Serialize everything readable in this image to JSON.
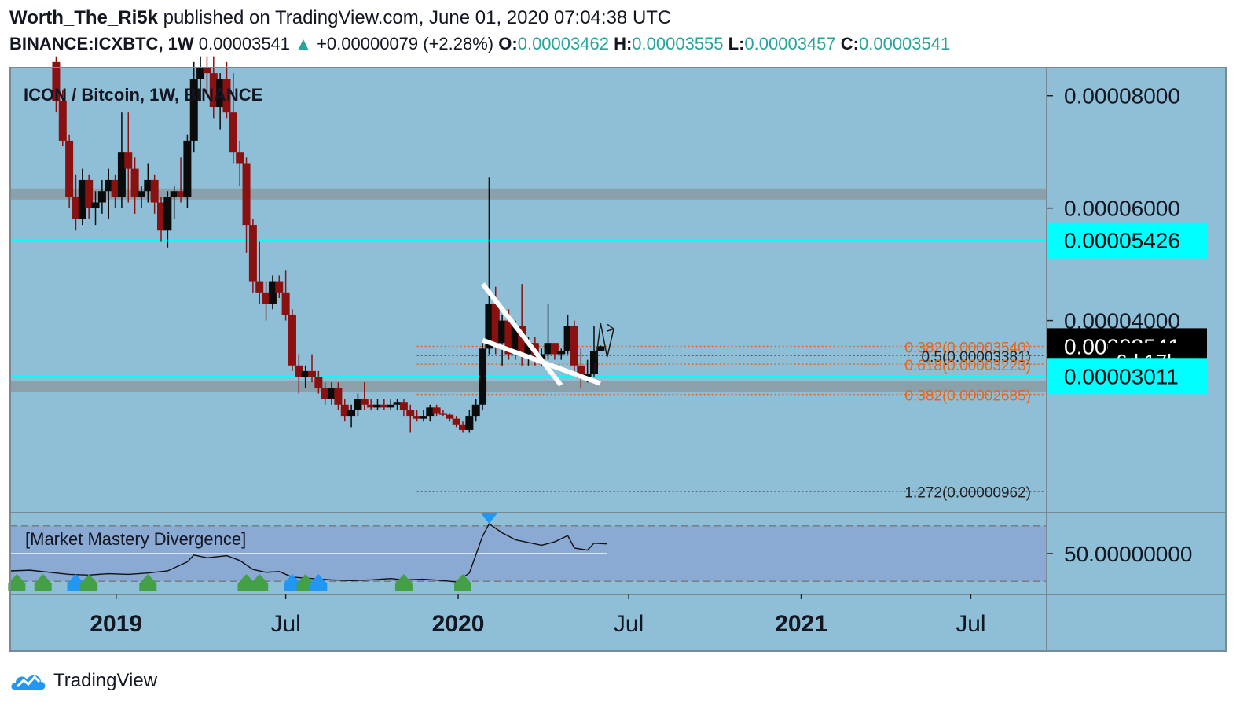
{
  "header": {
    "author": "Worth_The_Ri5k",
    "published_text": "published on TradingView.com, June 01, 2020 07:04:38 UTC",
    "symbol": "BINANCE:ICXBTC, 1W",
    "last_price": "0.00003541",
    "arrow": "▲",
    "change": "+0.00000079 (+2.28%)",
    "o_label": "O:",
    "o_value": "0.00003462",
    "h_label": "H:",
    "h_value": "0.00003555",
    "l_label": "L:",
    "l_value": "0.00003457",
    "c_label": "C:",
    "c_value": "0.00003541"
  },
  "chart_data": {
    "type": "candlestick",
    "title": "ICON / Bitcoin, 1W, BINANCE",
    "x_axis_labels": [
      {
        "label": "2019",
        "date": "2019-01-01",
        "bold": true
      },
      {
        "label": "Jul",
        "date": "2019-07-01",
        "bold": false
      },
      {
        "label": "2020",
        "date": "2020-01-01",
        "bold": true
      },
      {
        "label": "Jul",
        "date": "2020-07-01",
        "bold": false
      },
      {
        "label": "2021",
        "date": "2021-01-01",
        "bold": true
      },
      {
        "label": "Jul",
        "date": "2021-07-01",
        "bold": false
      }
    ],
    "y_axis_labels": [
      "0.00008000",
      "0.00006000",
      "0.00004000"
    ],
    "ylim": [
      5.8e-06,
      8.5e-05
    ],
    "xlim": [
      "2018-09-10",
      "2021-09-20"
    ],
    "price_labels": [
      {
        "text": "0.00005426",
        "value": 5.426e-05,
        "style": "cyan"
      },
      {
        "text": "0.00003541",
        "value": 3.541e-05,
        "style": "current"
      },
      {
        "text": "6d 17h",
        "value": 3.28e-05,
        "style": "countdown"
      },
      {
        "text": "0.00003011",
        "value": 3.011e-05,
        "style": "cyan"
      }
    ],
    "horizontal_lines": [
      {
        "value": 5.426e-05,
        "color": "#00ffff"
      },
      {
        "value": 3.011e-05,
        "color": "#00ffff"
      }
    ],
    "zones": [
      {
        "value": 6.25e-05,
        "color": "#8a9aa3"
      },
      {
        "value": 2.83e-05,
        "color": "#8a9aa3"
      }
    ],
    "fib_levels": [
      {
        "label": "0.382(0.00003540)",
        "value": 3.54e-05,
        "color": "#e8641a",
        "start": "2019-11-18"
      },
      {
        "label": "0.5(0.00003381)",
        "value": 3.381e-05,
        "color": "#222222",
        "start": "2019-11-18"
      },
      {
        "label": "0.618(0.00003223)",
        "value": 3.223e-05,
        "color": "#e8641a",
        "start": "2019-11-18"
      },
      {
        "label": "0.382(0.00002685)",
        "value": 2.685e-05,
        "color": "#e8641a",
        "start": "2019-11-18"
      },
      {
        "label": "1.272(0.00000962)",
        "value": 9.62e-06,
        "color": "#222222",
        "start": "2019-11-18"
      }
    ],
    "candles": [
      {
        "date": "2018-10-29",
        "o": 8.6e-05,
        "h": 8.7e-05,
        "l": 7.7e-05,
        "c": 7.9e-05
      },
      {
        "date": "2018-11-05",
        "o": 7.9e-05,
        "h": 8.1e-05,
        "l": 7.1e-05,
        "c": 7.2e-05
      },
      {
        "date": "2018-11-12",
        "o": 7.2e-05,
        "h": 7.3e-05,
        "l": 6e-05,
        "c": 6.2e-05
      },
      {
        "date": "2018-11-19",
        "o": 6.2e-05,
        "h": 6.6e-05,
        "l": 5.6e-05,
        "c": 5.8e-05
      },
      {
        "date": "2018-11-26",
        "o": 5.8e-05,
        "h": 6.7e-05,
        "l": 5.7e-05,
        "c": 6.5e-05
      },
      {
        "date": "2018-12-03",
        "o": 6.5e-05,
        "h": 6.6e-05,
        "l": 5.8e-05,
        "c": 6e-05
      },
      {
        "date": "2018-12-10",
        "o": 6e-05,
        "h": 6.3e-05,
        "l": 5.7e-05,
        "c": 6.1e-05
      },
      {
        "date": "2018-12-17",
        "o": 6.1e-05,
        "h": 6.5e-05,
        "l": 5.9e-05,
        "c": 6.3e-05
      },
      {
        "date": "2018-12-24",
        "o": 6.3e-05,
        "h": 6.7e-05,
        "l": 5.8e-05,
        "c": 6.5e-05
      },
      {
        "date": "2018-12-31",
        "o": 6.5e-05,
        "h": 6.6e-05,
        "l": 6e-05,
        "c": 6.2e-05
      },
      {
        "date": "2019-01-07",
        "o": 6.2e-05,
        "h": 7.7e-05,
        "l": 6e-05,
        "c": 7e-05
      },
      {
        "date": "2019-01-14",
        "o": 7e-05,
        "h": 7.7e-05,
        "l": 6.1e-05,
        "c": 6.7e-05
      },
      {
        "date": "2019-01-21",
        "o": 6.7e-05,
        "h": 6.9e-05,
        "l": 5.9e-05,
        "c": 6.2e-05
      },
      {
        "date": "2019-01-28",
        "o": 6.2e-05,
        "h": 6.4e-05,
        "l": 6e-05,
        "c": 6.3e-05
      },
      {
        "date": "2019-02-04",
        "o": 6.3e-05,
        "h": 6.8e-05,
        "l": 6.1e-05,
        "c": 6.5e-05
      },
      {
        "date": "2019-02-11",
        "o": 6.5e-05,
        "h": 6.6e-05,
        "l": 5.9e-05,
        "c": 6.1e-05
      },
      {
        "date": "2019-02-18",
        "o": 6.1e-05,
        "h": 6.2e-05,
        "l": 5.4e-05,
        "c": 5.6e-05
      },
      {
        "date": "2019-02-25",
        "o": 5.6e-05,
        "h": 6.3e-05,
        "l": 5.3e-05,
        "c": 6.2e-05
      },
      {
        "date": "2019-03-04",
        "o": 6.2e-05,
        "h": 6.4e-05,
        "l": 5.8e-05,
        "c": 6.3e-05
      },
      {
        "date": "2019-03-11",
        "o": 6.3e-05,
        "h": 6.9e-05,
        "l": 6.1e-05,
        "c": 6.2e-05
      },
      {
        "date": "2019-03-18",
        "o": 6.2e-05,
        "h": 7.3e-05,
        "l": 6e-05,
        "c": 7.2e-05
      },
      {
        "date": "2019-03-25",
        "o": 7.2e-05,
        "h": 8.6e-05,
        "l": 7e-05,
        "c": 8.3e-05
      },
      {
        "date": "2019-04-01",
        "o": 8.3e-05,
        "h": 8.7e-05,
        "l": 7.9e-05,
        "c": 8.5e-05
      },
      {
        "date": "2019-04-08",
        "o": 8.5e-05,
        "h": 8.7e-05,
        "l": 8e-05,
        "c": 8.4e-05
      },
      {
        "date": "2019-04-15",
        "o": 8.4e-05,
        "h": 8.7e-05,
        "l": 7.6e-05,
        "c": 7.8e-05
      },
      {
        "date": "2019-04-22",
        "o": 7.8e-05,
        "h": 8.4e-05,
        "l": 7.4e-05,
        "c": 8.3e-05
      },
      {
        "date": "2019-04-29",
        "o": 8.3e-05,
        "h": 8.6e-05,
        "l": 7.6e-05,
        "c": 7.7e-05
      },
      {
        "date": "2019-05-06",
        "o": 7.7e-05,
        "h": 8.4e-05,
        "l": 6.8e-05,
        "c": 7e-05
      },
      {
        "date": "2019-05-13",
        "o": 7e-05,
        "h": 7.2e-05,
        "l": 6.4e-05,
        "c": 6.8e-05
      },
      {
        "date": "2019-05-20",
        "o": 6.8e-05,
        "h": 6.9e-05,
        "l": 5.2e-05,
        "c": 5.7e-05
      },
      {
        "date": "2019-05-27",
        "o": 5.7e-05,
        "h": 5.8e-05,
        "l": 4.5e-05,
        "c": 4.7e-05
      },
      {
        "date": "2019-06-03",
        "o": 4.7e-05,
        "h": 5.4e-05,
        "l": 4.3e-05,
        "c": 4.5e-05
      },
      {
        "date": "2019-06-10",
        "o": 4.5e-05,
        "h": 4.7e-05,
        "l": 4e-05,
        "c": 4.3e-05
      },
      {
        "date": "2019-06-17",
        "o": 4.3e-05,
        "h": 4.8e-05,
        "l": 4.2e-05,
        "c": 4.7e-05
      },
      {
        "date": "2019-06-24",
        "o": 4.7e-05,
        "h": 4.8e-05,
        "l": 4.4e-05,
        "c": 4.5e-05
      },
      {
        "date": "2019-07-01",
        "o": 4.5e-05,
        "h": 4.9e-05,
        "l": 4e-05,
        "c": 4.1e-05
      },
      {
        "date": "2019-07-08",
        "o": 4.1e-05,
        "h": 4.2e-05,
        "l": 3.1e-05,
        "c": 3.2e-05
      },
      {
        "date": "2019-07-15",
        "o": 3.2e-05,
        "h": 3.4e-05,
        "l": 2.7e-05,
        "c": 3e-05
      },
      {
        "date": "2019-07-22",
        "o": 3e-05,
        "h": 3.2e-05,
        "l": 2.8e-05,
        "c": 3.1e-05
      },
      {
        "date": "2019-07-29",
        "o": 3.1e-05,
        "h": 3.4e-05,
        "l": 2.9e-05,
        "c": 3e-05
      },
      {
        "date": "2019-08-05",
        "o": 3e-05,
        "h": 3.1e-05,
        "l": 2.7e-05,
        "c": 2.8e-05
      },
      {
        "date": "2019-08-12",
        "o": 2.8e-05,
        "h": 2.9e-05,
        "l": 2.5e-05,
        "c": 2.6e-05
      },
      {
        "date": "2019-08-19",
        "o": 2.6e-05,
        "h": 2.9e-05,
        "l": 2.5e-05,
        "c": 2.8e-05
      },
      {
        "date": "2019-08-26",
        "o": 2.8e-05,
        "h": 2.9e-05,
        "l": 2.4e-05,
        "c": 2.5e-05
      },
      {
        "date": "2019-09-02",
        "o": 2.5e-05,
        "h": 2.6e-05,
        "l": 2.2e-05,
        "c": 2.3e-05
      },
      {
        "date": "2019-09-09",
        "o": 2.3e-05,
        "h": 2.5e-05,
        "l": 2.1e-05,
        "c": 2.4e-05
      },
      {
        "date": "2019-09-16",
        "o": 2.4e-05,
        "h": 2.7e-05,
        "l": 2.3e-05,
        "c": 2.6e-05
      },
      {
        "date": "2019-09-23",
        "o": 2.6e-05,
        "h": 2.9e-05,
        "l": 2.4e-05,
        "c": 2.5e-05
      },
      {
        "date": "2019-09-30",
        "o": 2.5e-05,
        "h": 2.6e-05,
        "l": 2.4e-05,
        "c": 2.45e-05
      },
      {
        "date": "2019-10-07",
        "o": 2.45e-05,
        "h": 2.6e-05,
        "l": 2.4e-05,
        "c": 2.5e-05
      },
      {
        "date": "2019-10-14",
        "o": 2.5e-05,
        "h": 2.6e-05,
        "l": 2.4e-05,
        "c": 2.45e-05
      },
      {
        "date": "2019-10-21",
        "o": 2.45e-05,
        "h": 2.6e-05,
        "l": 2.4e-05,
        "c": 2.5e-05
      },
      {
        "date": "2019-10-28",
        "o": 2.5e-05,
        "h": 2.6e-05,
        "l": 2.4e-05,
        "c": 2.55e-05
      },
      {
        "date": "2019-11-04",
        "o": 2.55e-05,
        "h": 2.6e-05,
        "l": 2.3e-05,
        "c": 2.4e-05
      },
      {
        "date": "2019-11-11",
        "o": 2.4e-05,
        "h": 2.5e-05,
        "l": 2e-05,
        "c": 2.3e-05
      },
      {
        "date": "2019-11-18",
        "o": 2.3e-05,
        "h": 2.4e-05,
        "l": 2.2e-05,
        "c": 2.25e-05
      },
      {
        "date": "2019-11-25",
        "o": 2.25e-05,
        "h": 2.4e-05,
        "l": 2.2e-05,
        "c": 2.3e-05
      },
      {
        "date": "2019-12-02",
        "o": 2.3e-05,
        "h": 2.5e-05,
        "l": 2.2e-05,
        "c": 2.45e-05
      },
      {
        "date": "2019-12-09",
        "o": 2.45e-05,
        "h": 2.5e-05,
        "l": 2.3e-05,
        "c": 2.35e-05
      },
      {
        "date": "2019-12-16",
        "o": 2.35e-05,
        "h": 2.4e-05,
        "l": 2.3e-05,
        "c": 2.32e-05
      },
      {
        "date": "2019-12-23",
        "o": 2.32e-05,
        "h": 2.35e-05,
        "l": 2.2e-05,
        "c": 2.25e-05
      },
      {
        "date": "2019-12-30",
        "o": 2.25e-05,
        "h": 2.3e-05,
        "l": 2.1e-05,
        "c": 2.15e-05
      },
      {
        "date": "2020-01-06",
        "o": 2.15e-05,
        "h": 2.2e-05,
        "l": 2e-05,
        "c": 2.05e-05
      },
      {
        "date": "2020-01-13",
        "o": 2.05e-05,
        "h": 2.4e-05,
        "l": 2e-05,
        "c": 2.3e-05
      },
      {
        "date": "2020-01-20",
        "o": 2.3e-05,
        "h": 2.6e-05,
        "l": 2.2e-05,
        "c": 2.5e-05
      },
      {
        "date": "2020-01-27",
        "o": 2.5e-05,
        "h": 3.6e-05,
        "l": 2.4e-05,
        "c": 3.5e-05
      },
      {
        "date": "2020-02-03",
        "o": 3.5e-05,
        "h": 6.55e-05,
        "l": 3.4e-05,
        "c": 4.3e-05
      },
      {
        "date": "2020-02-10",
        "o": 4.3e-05,
        "h": 4.6e-05,
        "l": 3.4e-05,
        "c": 3.6e-05
      },
      {
        "date": "2020-02-17",
        "o": 3.6e-05,
        "h": 4.1e-05,
        "l": 3.2e-05,
        "c": 4e-05
      },
      {
        "date": "2020-02-24",
        "o": 4e-05,
        "h": 4.2e-05,
        "l": 3.3e-05,
        "c": 3.4e-05
      },
      {
        "date": "2020-03-02",
        "o": 3.4e-05,
        "h": 4e-05,
        "l": 3.3e-05,
        "c": 3.9e-05
      },
      {
        "date": "2020-03-09",
        "o": 3.9e-05,
        "h": 4.65e-05,
        "l": 3.2e-05,
        "c": 3.4e-05
      },
      {
        "date": "2020-03-16",
        "o": 3.4e-05,
        "h": 3.7e-05,
        "l": 3.2e-05,
        "c": 3.6e-05
      },
      {
        "date": "2020-03-23",
        "o": 3.6e-05,
        "h": 3.7e-05,
        "l": 3.2e-05,
        "c": 3.3e-05
      },
      {
        "date": "2020-03-30",
        "o": 3.3e-05,
        "h": 3.5e-05,
        "l": 3.2e-05,
        "c": 3.4e-05
      },
      {
        "date": "2020-04-06",
        "o": 3.4e-05,
        "h": 4.3e-05,
        "l": 3.3e-05,
        "c": 3.6e-05
      },
      {
        "date": "2020-04-13",
        "o": 3.6e-05,
        "h": 3.6e-05,
        "l": 3.3e-05,
        "c": 3.4e-05
      },
      {
        "date": "2020-04-20",
        "o": 3.4e-05,
        "h": 3.5e-05,
        "l": 3.3e-05,
        "c": 3.45e-05
      },
      {
        "date": "2020-04-27",
        "o": 3.45e-05,
        "h": 4.1e-05,
        "l": 3.4e-05,
        "c": 3.9e-05
      },
      {
        "date": "2020-05-04",
        "o": 3.9e-05,
        "h": 4e-05,
        "l": 3.1e-05,
        "c": 3.2e-05
      },
      {
        "date": "2020-05-11",
        "o": 3.2e-05,
        "h": 3.5e-05,
        "l": 2.8e-05,
        "c": 3e-05
      },
      {
        "date": "2020-05-18",
        "o": 3e-05,
        "h": 3.3e-05,
        "l": 2.9e-05,
        "c": 3.05e-05
      },
      {
        "date": "2020-05-25",
        "o": 3.05e-05,
        "h": 3.9e-05,
        "l": 3e-05,
        "c": 3.46e-05
      },
      {
        "date": "2020-06-01",
        "o": 3.462e-05,
        "h": 3.555e-05,
        "l": 3.457e-05,
        "c": 3.541e-05
      }
    ],
    "annotations": {
      "channel_lines": [
        {
          "from": [
            "2020-02-03",
            4.65e-05
          ],
          "to": [
            "2020-04-13",
            2.85e-05
          ]
        },
        {
          "from": [
            "2020-02-03",
            3.65e-05
          ],
          "to": [
            "2020-05-25",
            2.88e-05
          ]
        }
      ],
      "projection_path": [
        [
          "2020-05-25",
          3.05e-05
        ],
        [
          "2020-06-01",
          3.95e-05
        ],
        [
          "2020-06-08",
          3.35e-05
        ],
        [
          "2020-06-15",
          3.85e-05
        ]
      ]
    },
    "indicator": {
      "name": "[Market Mastery Divergence]",
      "axis_label": "50.00000000",
      "ylim": [
        0,
        100
      ],
      "bands": [
        90,
        10
      ],
      "midline": 50,
      "series": [
        [
          "2018-09-10",
          25
        ],
        [
          "2018-10-01",
          26
        ],
        [
          "2018-10-29",
          22
        ],
        [
          "2018-11-12",
          20
        ],
        [
          "2018-12-03",
          19
        ],
        [
          "2018-12-24",
          21
        ],
        [
          "2019-01-14",
          20
        ],
        [
          "2019-02-04",
          22
        ],
        [
          "2019-02-25",
          25
        ],
        [
          "2019-03-18",
          38
        ],
        [
          "2019-03-25",
          48
        ],
        [
          "2019-04-08",
          44
        ],
        [
          "2019-04-29",
          47
        ],
        [
          "2019-05-13",
          40
        ],
        [
          "2019-05-27",
          27
        ],
        [
          "2019-06-10",
          23
        ],
        [
          "2019-06-24",
          24
        ],
        [
          "2019-07-08",
          16
        ],
        [
          "2019-07-29",
          14
        ],
        [
          "2019-08-19",
          12
        ],
        [
          "2019-09-09",
          11
        ],
        [
          "2019-09-30",
          12
        ],
        [
          "2019-10-21",
          14
        ],
        [
          "2019-11-04",
          12
        ],
        [
          "2019-11-25",
          13
        ],
        [
          "2019-12-16",
          11
        ],
        [
          "2019-12-30",
          9
        ],
        [
          "2020-01-13",
          22
        ],
        [
          "2020-01-27",
          75
        ],
        [
          "2020-02-03",
          93
        ],
        [
          "2020-02-17",
          80
        ],
        [
          "2020-03-02",
          70
        ],
        [
          "2020-03-16",
          66
        ],
        [
          "2020-03-30",
          62
        ],
        [
          "2020-04-13",
          67
        ],
        [
          "2020-04-27",
          76
        ],
        [
          "2020-05-04",
          58
        ],
        [
          "2020-05-18",
          55
        ],
        [
          "2020-05-25",
          65
        ],
        [
          "2020-06-08",
          64
        ]
      ],
      "signals": [
        {
          "date": "2018-09-17",
          "kind": "bull",
          "color": "#43a047"
        },
        {
          "date": "2018-10-15",
          "kind": "bull",
          "color": "#43a047"
        },
        {
          "date": "2018-11-19",
          "kind": "bull",
          "color": "#2196f3"
        },
        {
          "date": "2018-12-03",
          "kind": "bull",
          "color": "#43a047"
        },
        {
          "date": "2019-02-04",
          "kind": "bull",
          "color": "#43a047"
        },
        {
          "date": "2019-05-20",
          "kind": "bull",
          "color": "#43a047"
        },
        {
          "date": "2019-06-03",
          "kind": "bull",
          "color": "#43a047"
        },
        {
          "date": "2019-07-08",
          "kind": "bull",
          "color": "#2196f3"
        },
        {
          "date": "2019-07-22",
          "kind": "bull",
          "color": "#43a047"
        },
        {
          "date": "2019-08-05",
          "kind": "bull",
          "color": "#2196f3"
        },
        {
          "date": "2019-11-04",
          "kind": "bull",
          "color": "#43a047"
        },
        {
          "date": "2020-01-06",
          "kind": "bull",
          "color": "#43a047"
        },
        {
          "date": "2020-02-03",
          "kind": "bear",
          "color": "#2196f3"
        }
      ]
    }
  },
  "footer": {
    "brand": "TradingView",
    "logo_icon": "tradingview-logo-icon"
  },
  "colors": {
    "background": "#8fbfd7",
    "indicator_background": "#8aa9d3",
    "up": "#0b0b0b",
    "down": "#8b1010",
    "cyan": "#00ffff",
    "zone": "#8a9aa3"
  }
}
